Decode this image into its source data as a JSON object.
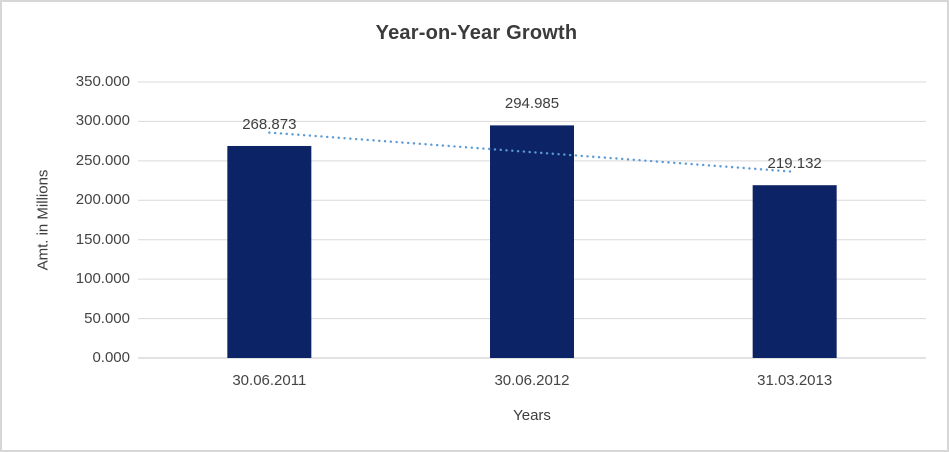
{
  "title": "Year-on-Year Growth",
  "colors": {
    "bar": "#0c2365",
    "trendline": "#5b9bd5",
    "gridline": "#d9d9d9",
    "axis_line": "#c6c6c6",
    "title_text": "#3b3b3b",
    "label_text": "#3d3d3d",
    "tick_text": "#444444",
    "border": "#d7d7d7"
  },
  "chart_data": {
    "type": "bar",
    "title": "Year-on-Year Growth",
    "categories": [
      "30.06.2011",
      "30.06.2012",
      "31.03.2013"
    ],
    "values": [
      268.873,
      294.985,
      219.132
    ],
    "value_labels": [
      "268.873",
      "294.985",
      "219.132"
    ],
    "xlabel": "Years",
    "ylabel": "Amt. in Millions",
    "ylim": [
      0,
      350
    ],
    "y_ticks": [
      0,
      50,
      100,
      150,
      200,
      250,
      300,
      350
    ],
    "y_tick_labels_top_to_bottom": [
      "350.000",
      "300.000",
      "250.000",
      "200.000",
      "150.000",
      "100.000",
      "50.000",
      "0.000"
    ],
    "grid": true,
    "legend": "none",
    "trendline": {
      "type": "linear",
      "style": "dotted",
      "color": "#5b9bd5"
    }
  }
}
